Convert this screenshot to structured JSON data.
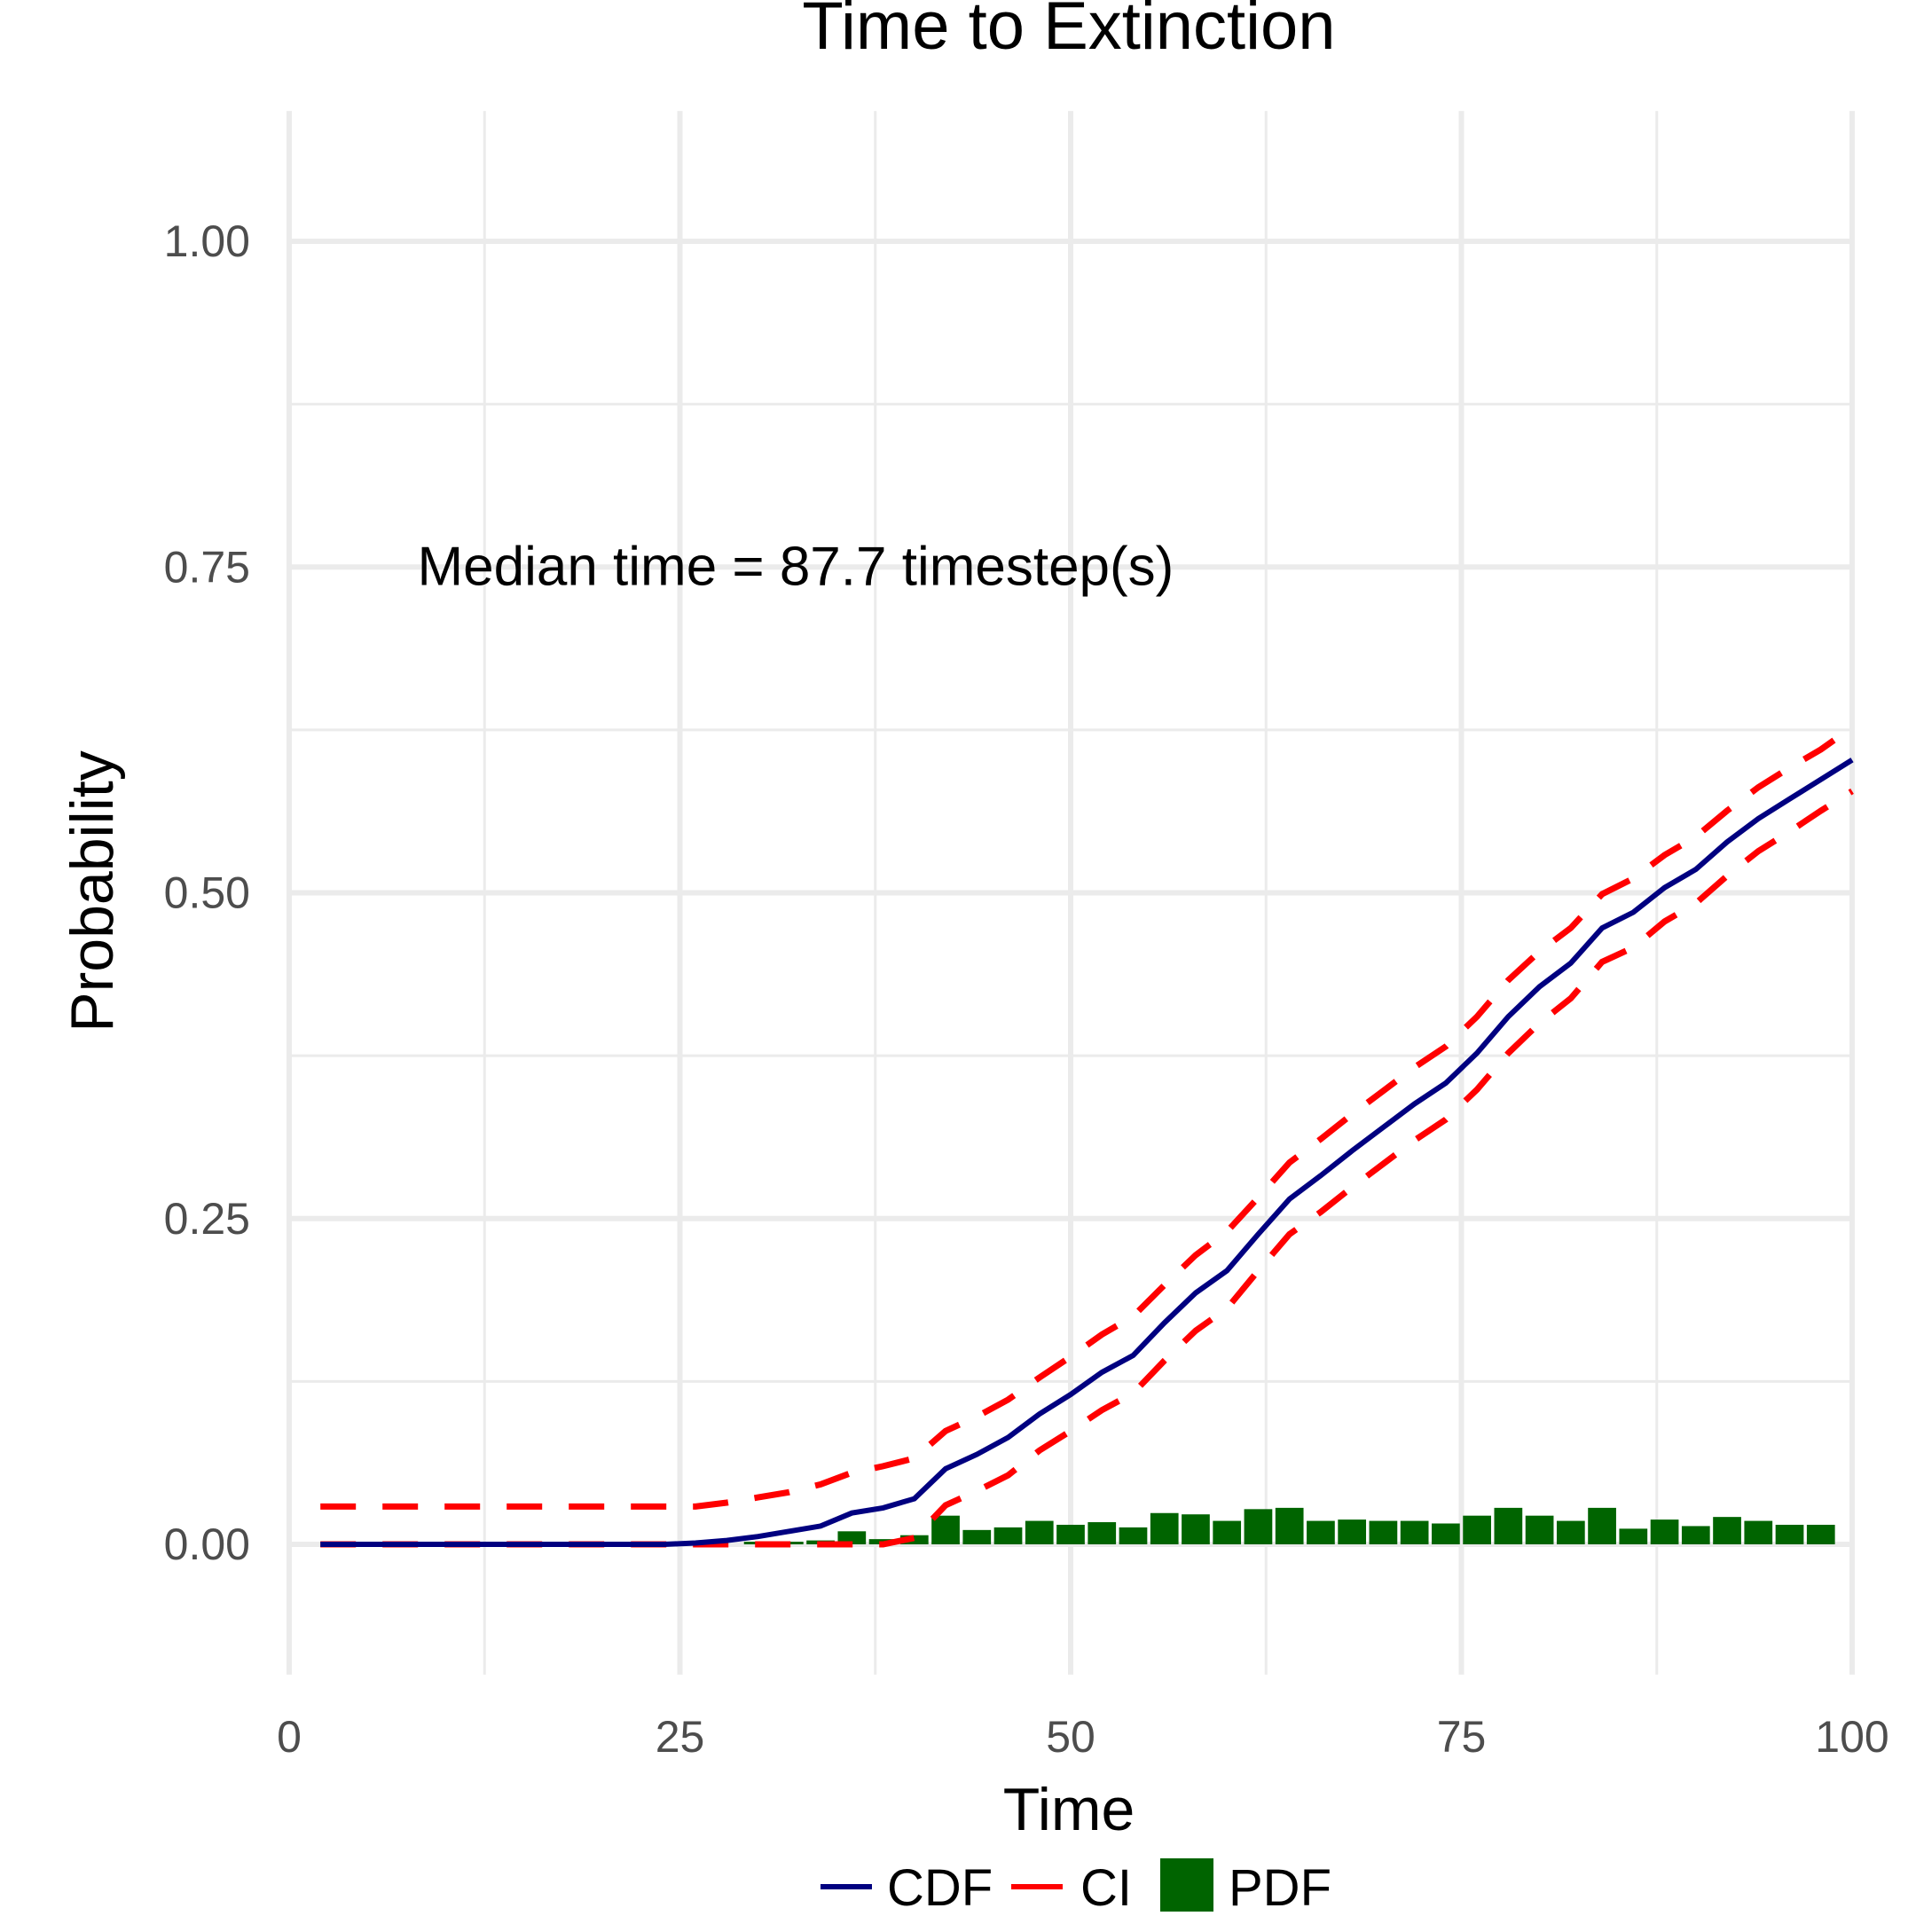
{
  "chart_data": {
    "type": "line",
    "title": "Time to Extinction",
    "xlabel": "Time",
    "ylabel": "Probability",
    "xlim": [
      0,
      100
    ],
    "ylim": [
      -0.1,
      1.1
    ],
    "x_ticks": [
      0,
      25,
      50,
      75,
      100
    ],
    "y_ticks": [
      0.0,
      0.25,
      0.5,
      0.75,
      1.0
    ],
    "y_tick_labels": [
      "0.00",
      "0.25",
      "0.50",
      "0.75",
      "1.00"
    ],
    "grid": true,
    "legend_position": "bottom",
    "annotation": {
      "text": "Median time = 87.7 timestep(s)",
      "x": 8.2,
      "y": 0.75
    },
    "series": [
      {
        "name": "CDF",
        "kind": "line",
        "color": "#000080",
        "x": [
          2,
          4,
          6,
          8,
          10,
          12,
          14,
          16,
          18,
          20,
          22,
          24,
          26,
          28,
          30,
          32,
          34,
          36,
          38,
          40,
          42,
          44,
          46,
          48,
          50,
          52,
          54,
          56,
          58,
          60,
          62,
          64,
          66,
          68,
          70,
          72,
          74,
          76,
          78,
          80,
          82,
          84,
          86,
          88,
          90,
          92,
          94,
          96,
          98,
          100
        ],
        "y": [
          0,
          0,
          0,
          0,
          0,
          0,
          0,
          0,
          0,
          0,
          0,
          0,
          0.001,
          0.003,
          0.006,
          0.01,
          0.014,
          0.024,
          0.028,
          0.035,
          0.058,
          0.069,
          0.082,
          0.1,
          0.115,
          0.132,
          0.145,
          0.17,
          0.193,
          0.21,
          0.238,
          0.265,
          0.283,
          0.302,
          0.32,
          0.338,
          0.354,
          0.377,
          0.405,
          0.428,
          0.446,
          0.473,
          0.485,
          0.504,
          0.518,
          0.539,
          0.557,
          0.572,
          0.587,
          0.602
        ]
      },
      {
        "name": "CI",
        "kind": "dashed-line",
        "color": "#ff0000",
        "bounds": [
          {
            "x": [
              2,
              4,
              6,
              8,
              10,
              12,
              14,
              16,
              18,
              20,
              22,
              24,
              26,
              28,
              30,
              32,
              34,
              36,
              38,
              40,
              42,
              44,
              46,
              48,
              50,
              52,
              54,
              56,
              58,
              60,
              62,
              64,
              66,
              68,
              70,
              72,
              74,
              76,
              78,
              80,
              82,
              84,
              86,
              88,
              90,
              92,
              94,
              96,
              98,
              100
            ],
            "y": [
              0.029,
              0.029,
              0.029,
              0.029,
              0.029,
              0.029,
              0.029,
              0.029,
              0.029,
              0.029,
              0.029,
              0.029,
              0.029,
              0.032,
              0.036,
              0.04,
              0.046,
              0.055,
              0.06,
              0.066,
              0.087,
              0.098,
              0.111,
              0.128,
              0.144,
              0.161,
              0.175,
              0.199,
              0.222,
              0.24,
              0.266,
              0.293,
              0.311,
              0.33,
              0.348,
              0.366,
              0.382,
              0.405,
              0.433,
              0.455,
              0.473,
              0.499,
              0.511,
              0.529,
              0.543,
              0.563,
              0.581,
              0.596,
              0.61,
              0.627
            ]
          },
          {
            "x": [
              2,
              4,
              6,
              8,
              10,
              12,
              14,
              16,
              18,
              20,
              22,
              24,
              26,
              28,
              30,
              32,
              34,
              36,
              38,
              40,
              42,
              44,
              46,
              48,
              50,
              52,
              54,
              56,
              58,
              60,
              62,
              64,
              66,
              68,
              70,
              72,
              74,
              76,
              78,
              80,
              82,
              84,
              86,
              88,
              90,
              92,
              94,
              96,
              98,
              100
            ],
            "y": [
              0,
              0,
              0,
              0,
              0,
              0,
              0,
              0,
              0,
              0,
              0,
              0,
              0,
              0,
              0,
              0,
              0,
              0,
              0,
              0.005,
              0.03,
              0.041,
              0.053,
              0.072,
              0.087,
              0.103,
              0.116,
              0.141,
              0.164,
              0.181,
              0.21,
              0.238,
              0.255,
              0.274,
              0.292,
              0.31,
              0.326,
              0.349,
              0.377,
              0.4,
              0.419,
              0.447,
              0.458,
              0.478,
              0.492,
              0.513,
              0.532,
              0.547,
              0.563,
              0.578
            ]
          }
        ]
      },
      {
        "name": "PDF",
        "kind": "bar",
        "color": "#006400",
        "x": [
          30,
          32,
          34,
          36,
          38,
          40,
          42,
          44,
          46,
          48,
          50,
          52,
          54,
          56,
          58,
          60,
          62,
          64,
          66,
          68,
          70,
          72,
          74,
          76,
          78,
          80,
          82,
          84,
          86,
          88,
          90,
          92,
          94,
          96,
          98
        ],
        "y": [
          0.002,
          0.002,
          0.003,
          0.01,
          0.004,
          0.007,
          0.022,
          0.011,
          0.013,
          0.018,
          0.015,
          0.017,
          0.013,
          0.024,
          0.023,
          0.018,
          0.027,
          0.028,
          0.018,
          0.019,
          0.018,
          0.018,
          0.016,
          0.022,
          0.028,
          0.022,
          0.018,
          0.028,
          0.012,
          0.019,
          0.014,
          0.021,
          0.018,
          0.015,
          0.015
        ]
      }
    ]
  }
}
